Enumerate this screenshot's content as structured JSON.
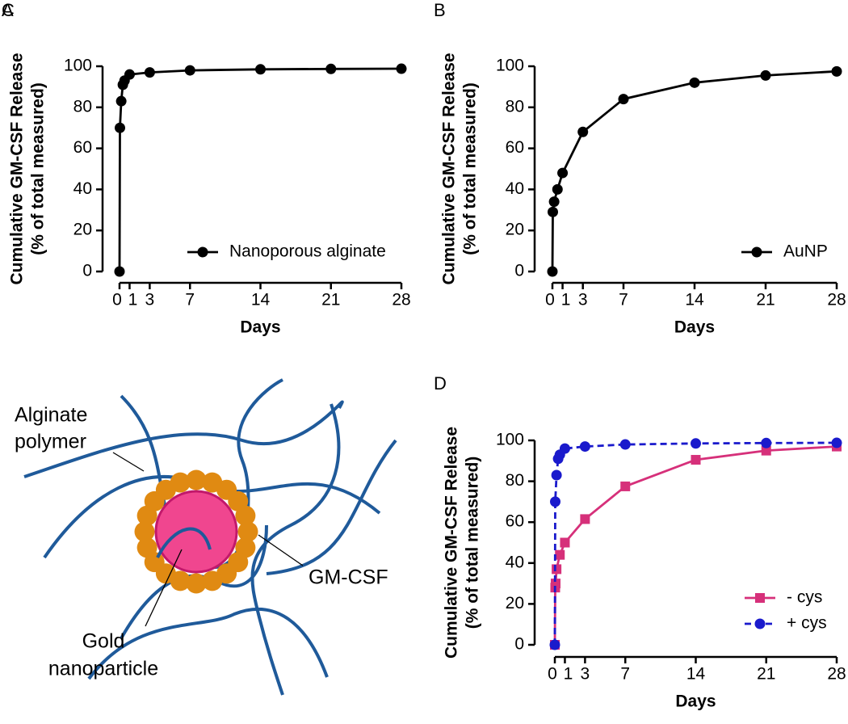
{
  "chart_data": [
    {
      "panel": "A",
      "type": "line",
      "xlabel": "Days",
      "ylabel": [
        "Cumulative GM-CSF Release",
        "(% of total measured)"
      ],
      "xlim": [
        0,
        28
      ],
      "xticks": [
        0,
        1,
        3,
        7,
        14,
        21,
        28
      ],
      "ylim": [
        0,
        100
      ],
      "yticks": [
        0,
        20,
        40,
        60,
        80,
        100
      ],
      "legend": "lower right",
      "series": [
        {
          "name": "Nanoporous alginate",
          "color": "#000000",
          "marker": "circle",
          "dashed": false,
          "x": [
            0,
            0.04,
            0.17,
            0.33,
            0.5,
            1,
            3,
            7,
            14,
            21,
            28
          ],
          "values": [
            0,
            70,
            83,
            91,
            93,
            96,
            97,
            98,
            98.5,
            98.7,
            98.8
          ]
        }
      ]
    },
    {
      "panel": "B",
      "type": "line",
      "xlabel": "Days",
      "ylabel": [
        "Cumulative GM-CSF Release",
        "(% of total measured)"
      ],
      "xlim": [
        0,
        28
      ],
      "xticks": [
        0,
        1,
        3,
        7,
        14,
        21,
        28
      ],
      "ylim": [
        0,
        100
      ],
      "yticks": [
        0,
        20,
        40,
        60,
        80,
        100
      ],
      "legend": "lower right",
      "series": [
        {
          "name": "AuNP",
          "color": "#000000",
          "marker": "circle",
          "dashed": false,
          "x": [
            0,
            0.04,
            0.17,
            0.5,
            1,
            3,
            7,
            14,
            21,
            28
          ],
          "values": [
            0,
            29,
            34,
            40,
            48,
            68,
            84,
            92,
            95.5,
            97.5
          ]
        }
      ]
    },
    {
      "panel": "D",
      "type": "line",
      "xlabel": "Days",
      "ylabel": [
        "Cumulative GM-CSF Release",
        "(% of total measured)"
      ],
      "xlim": [
        0,
        28
      ],
      "xticks": [
        0,
        1,
        3,
        7,
        14,
        21,
        28
      ],
      "ylim": [
        0,
        100
      ],
      "yticks": [
        0,
        20,
        40,
        60,
        80,
        100
      ],
      "legend": "lower right",
      "series": [
        {
          "name": "- cys",
          "color": "#d6307a",
          "marker": "square",
          "dashed": false,
          "x": [
            0,
            0.04,
            0.08,
            0.17,
            0.5,
            1,
            3,
            7,
            14,
            21,
            28
          ],
          "values": [
            0,
            28,
            30,
            37,
            44,
            50,
            61.5,
            77.5,
            90.5,
            95,
            97
          ]
        },
        {
          "name": "+ cys",
          "color": "#1a1acc",
          "marker": "circle",
          "dashed": true,
          "x": [
            0,
            0.04,
            0.17,
            0.33,
            0.5,
            1,
            3,
            7,
            14,
            21,
            28
          ],
          "values": [
            0,
            70,
            83,
            91,
            93,
            96,
            97,
            98,
            98.5,
            98.7,
            98.8
          ]
        }
      ]
    }
  ],
  "diagram": {
    "panel": "C",
    "labels": [
      "Alginate",
      "polymer",
      "GM-CSF",
      "Gold",
      "nanoparticle"
    ]
  }
}
